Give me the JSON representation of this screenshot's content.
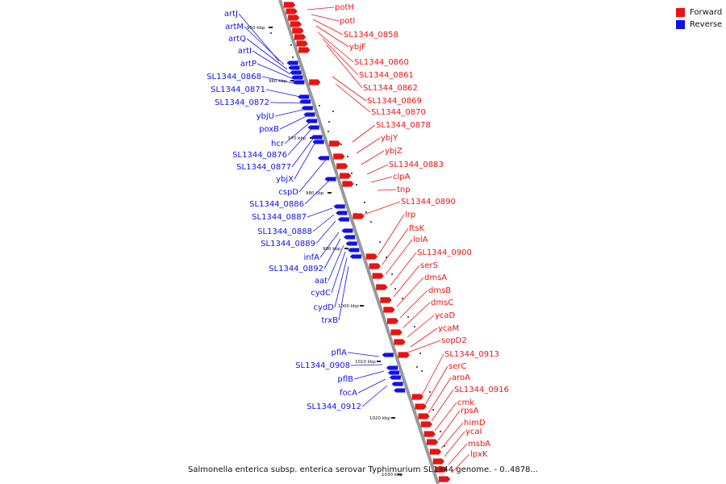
{
  "caption": "Salmonella enterica subsp. enterica serovar Typhimurium SL1344 genome. - 0..4878...",
  "legend": [
    {
      "label": "Forward",
      "color": "#ee1111"
    },
    {
      "label": "Reverse",
      "color": "#1111ee"
    }
  ],
  "colors": {
    "forward": "#ee1111",
    "reverse": "#1111ee",
    "axis": "#999999"
  },
  "ticks": [
    "950 kbp",
    "960 kbp",
    "970 kbp",
    "980 kbp",
    "990 kbp",
    "1000 kbp",
    "1010 kbp",
    "1020 kbp",
    "1030 kbp"
  ],
  "forward_genes": [
    "potH",
    "potI",
    "SL1344_0858",
    "ybjF",
    "SL1344_0860",
    "SL1344_0861",
    "SL1344_0862",
    "SL1344_0869",
    "SL1344_0870",
    "SL1344_0878",
    "ybjY",
    "ybjZ",
    "SL1344_0883",
    "clpA",
    "tnp",
    "SL1344_0890",
    "lrp",
    "ftsK",
    "lolA",
    "SL1344_0900",
    "serS",
    "dmsA",
    "dmsB",
    "dmsC",
    "ycaD",
    "ycaM",
    "sopD2",
    "SL1344_0913",
    "serC",
    "aroA",
    "SL1344_0916",
    "cmk",
    "rpsA",
    "himD",
    "ycaI",
    "msbA",
    "lpxK"
  ],
  "reverse_genes": [
    "artJ",
    "artM",
    "artQ",
    "artI",
    "artP",
    "SL1344_0868",
    "SL1344_0871",
    "SL1344_0872",
    "ybjU",
    "poxB",
    "hcr",
    "SL1344_0876",
    "SL1344_0877",
    "ybjX",
    "cspD",
    "SL1344_0886",
    "SL1344_0887",
    "SL1344_0888",
    "SL1344_0889",
    "infA",
    "SL1344_0892",
    "aat",
    "cydC",
    "cydD",
    "trxB",
    "pflA",
    "SL1344_0908",
    "pflB",
    "focA",
    "SL1344_0912"
  ]
}
